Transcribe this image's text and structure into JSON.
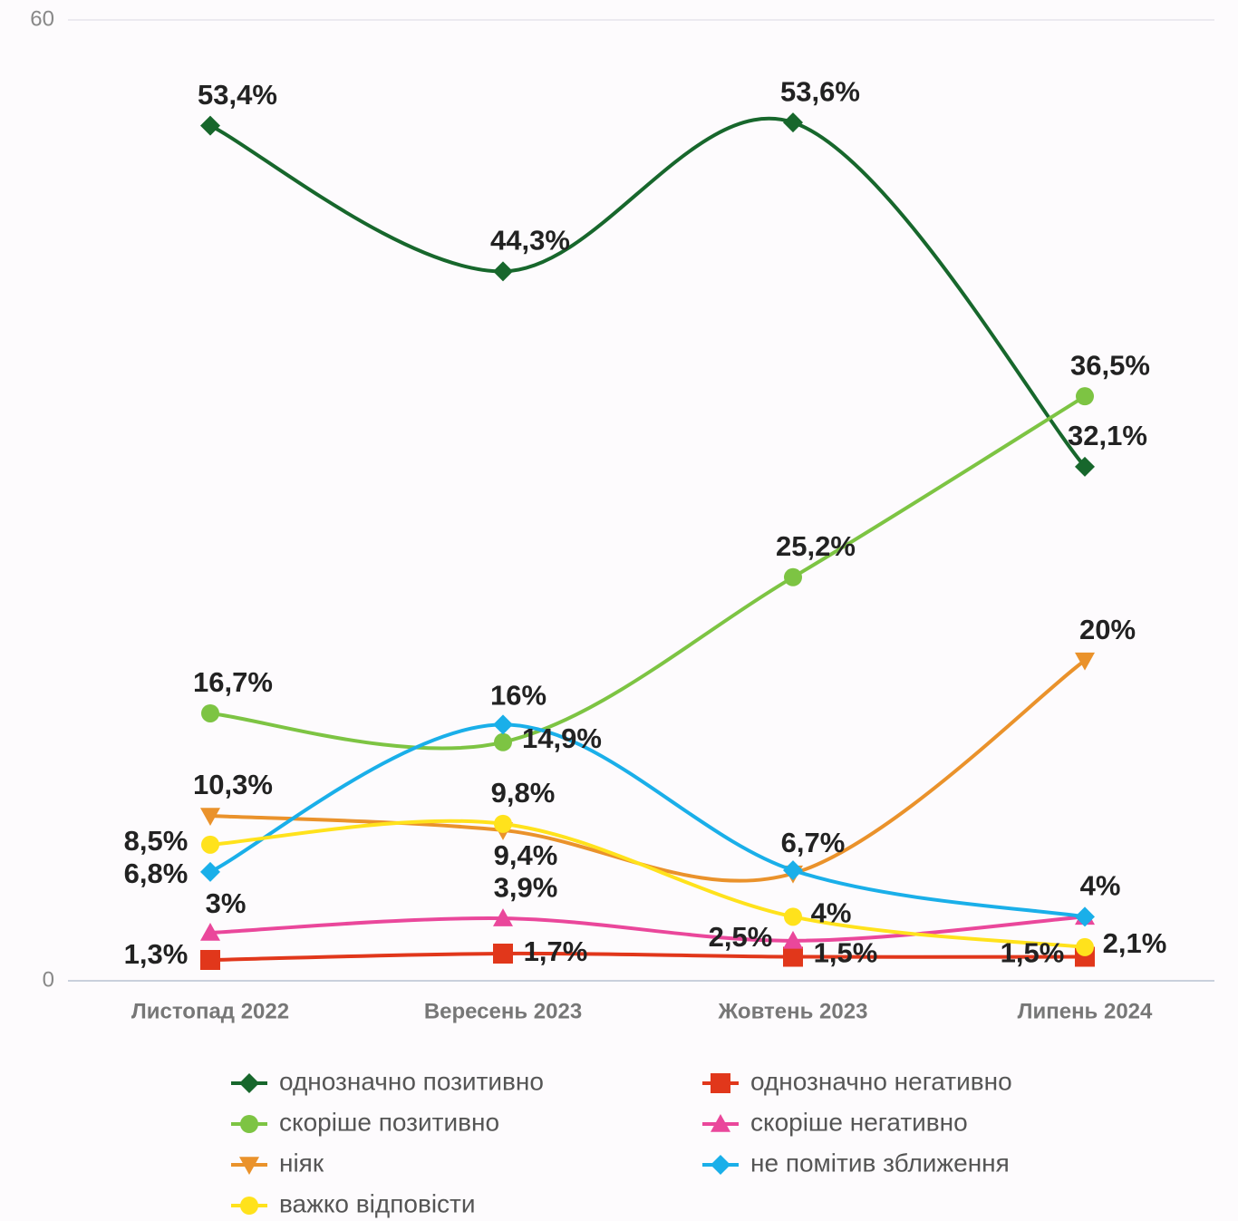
{
  "chart_data": {
    "type": "line",
    "categories": [
      "Листопад 2022",
      "Вересень 2023",
      "Жовтень 2023",
      "Липень 2024"
    ],
    "ylim": [
      0,
      60
    ],
    "yticks": [
      0,
      60
    ],
    "grid": true,
    "smooth": true,
    "series": [
      {
        "name": "однозначно позитивно",
        "color": "#17672c",
        "marker": "diamond",
        "values": [
          53.4,
          44.3,
          53.6,
          32.1
        ],
        "value_labels": [
          "53,4%",
          "44,3%",
          "53,6%",
          "32,1%"
        ]
      },
      {
        "name": "однозначно негативно",
        "color": "#e1371b",
        "marker": "square",
        "values": [
          1.3,
          1.7,
          1.5,
          1.5
        ],
        "value_labels": [
          "1,3%",
          "1,7%",
          "1,5%",
          "1,5%"
        ]
      },
      {
        "name": "скоріше позитивно",
        "color": "#7dc443",
        "marker": "circle",
        "values": [
          16.7,
          14.9,
          25.2,
          36.5
        ],
        "value_labels": [
          "16,7%",
          "14,9%",
          "25,2%",
          "36,5%"
        ]
      },
      {
        "name": "скоріше негативно",
        "color": "#ea479b",
        "marker": "triangle-up",
        "values": [
          3,
          3.9,
          2.5,
          4
        ],
        "value_labels": [
          "3%",
          "3,9%",
          "2,5%",
          "4%"
        ]
      },
      {
        "name": "ніяк",
        "color": "#ea922b",
        "marker": "triangle-down",
        "values": [
          10.3,
          9.4,
          6.7,
          20
        ],
        "value_labels": [
          "10,3%",
          "9,4%",
          "6,7%",
          "20%"
        ]
      },
      {
        "name": "не помітив зближення",
        "color": "#1aafe9",
        "marker": "diamond",
        "values": [
          6.8,
          16,
          6.9,
          4
        ],
        "value_labels": [
          "6,8%",
          "16%",
          null,
          null
        ]
      },
      {
        "name": "важко відповісти",
        "color": "#ffe21c",
        "marker": "circle",
        "values": [
          8.5,
          9.8,
          4,
          2.1
        ],
        "value_labels": [
          "8,5%",
          "9,8%",
          "4%",
          "2,1%"
        ]
      }
    ]
  }
}
